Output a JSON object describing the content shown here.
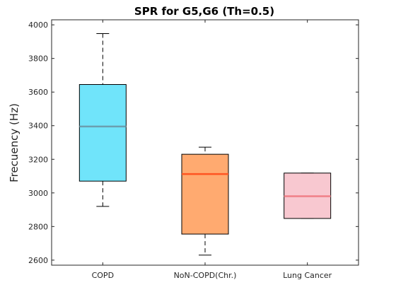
{
  "chart_data": {
    "type": "box",
    "title": "SPR  for G5,G6 (Th=0.5)",
    "xlabel": "",
    "ylabel": "Frecuency (Hz)",
    "ylim": [
      2570,
      4030
    ],
    "yticks": [
      2600,
      2800,
      3000,
      3200,
      3400,
      3600,
      3800,
      4000
    ],
    "categories": [
      "COPD",
      "NoN-COPD(Chr.)",
      "Lung Cancer"
    ],
    "boxes": [
      {
        "category": "COPD",
        "whisker_low": 2920,
        "q1": 3070,
        "median": 3395,
        "q3": 3645,
        "whisker_high": 3948,
        "fill": "#70e4fa",
        "median_color": "#6a9fb0"
      },
      {
        "category": "NoN-COPD(Chr.)",
        "whisker_low": 2630,
        "q1": 2755,
        "median": 3112,
        "q3": 3230,
        "whisker_high": 3272,
        "fill": "#ffaa70",
        "median_color": "#ff5522"
      },
      {
        "category": "Lung Cancer",
        "whisker_low": 2848,
        "q1": 2848,
        "median": 2980,
        "q3": 3118,
        "whisker_high": 3118,
        "fill": "#f8c8d0",
        "median_color": "#f08088"
      }
    ],
    "grid": false,
    "box_frame": true
  }
}
